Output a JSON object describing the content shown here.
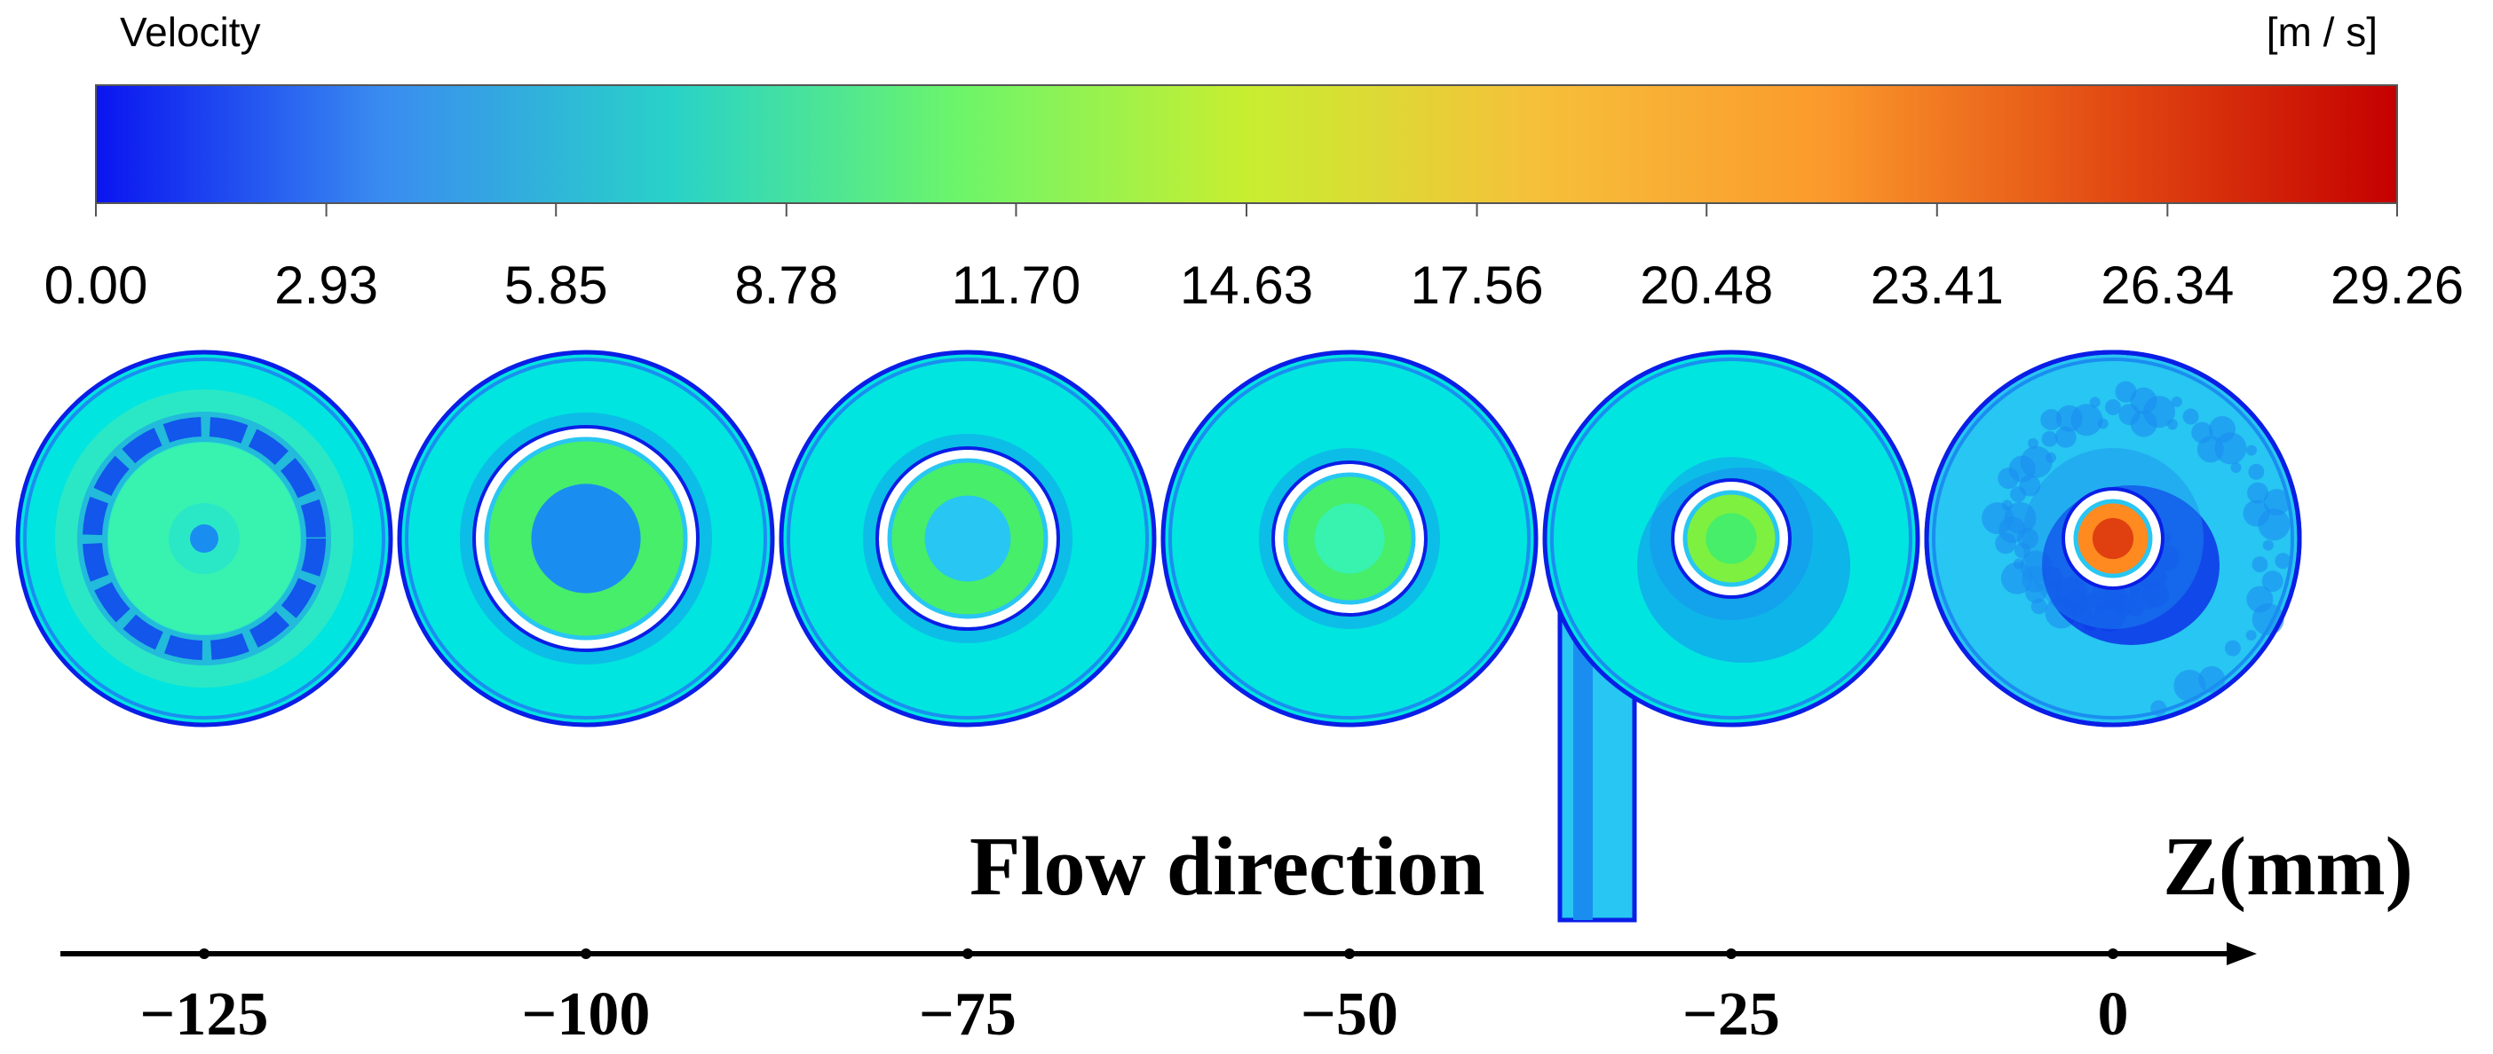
{
  "colorbar": {
    "title": "Velocity",
    "unit": "[m / s]",
    "ticks": [
      "0.00",
      "2.93",
      "5.85",
      "8.78",
      "11.70",
      "14.63",
      "17.56",
      "20.48",
      "23.41",
      "26.34",
      "29.26"
    ],
    "min": 0,
    "max": 29.26,
    "stops": [
      "#0a14f0",
      "#3a8cf0",
      "#28d2c8",
      "#6cf56a",
      "#c8ee30",
      "#f6c03a",
      "#fb9a2c",
      "#e24a12",
      "#c40000"
    ]
  },
  "colors": {
    "deep_blue": "#0a1ee6",
    "mid_blue": "#1a8ef0",
    "light_blue": "#28c6f2",
    "cyan": "#00e5e0",
    "aqua": "#2ae8c6",
    "green_cyan": "#38f2b0",
    "green": "#46ee6a",
    "lime": "#7df040",
    "orange": "#ff8a20",
    "red_orange": "#e04010"
  },
  "sections": [
    {
      "z": -125,
      "label": "−125",
      "type": "ring_only",
      "outer_color": "#00e5e0",
      "inner_color": "#38f2b0",
      "core_color": "#1a8ef0"
    },
    {
      "z": -100,
      "label": "−100",
      "type": "pipe",
      "outer_color": "#00e5e0",
      "inner_color": "#46ee6a",
      "core_color": "#1a8ef0"
    },
    {
      "z": -75,
      "label": "−75",
      "type": "pipe",
      "outer_color": "#00e5e0",
      "inner_color": "#46ee6a",
      "core_color": "#28c6f2"
    },
    {
      "z": -50,
      "label": "−50",
      "type": "pipe",
      "outer_color": "#00e5e0",
      "inner_color": "#46ee6a",
      "core_color": "#38f2b0"
    },
    {
      "z": -25,
      "label": "−25",
      "type": "inlet",
      "outer_color": "#00e5e0",
      "inner_color": "#7df040",
      "core_color": "#46ee6a"
    },
    {
      "z": 0,
      "label": "0",
      "type": "outlet",
      "outer_color": "#28c6f2",
      "inner_color": "#ff8a20",
      "core_color": "#e04010"
    }
  ],
  "annotations": {
    "flow_direction": "Flow direction",
    "axis_label": "Z(mm)"
  }
}
